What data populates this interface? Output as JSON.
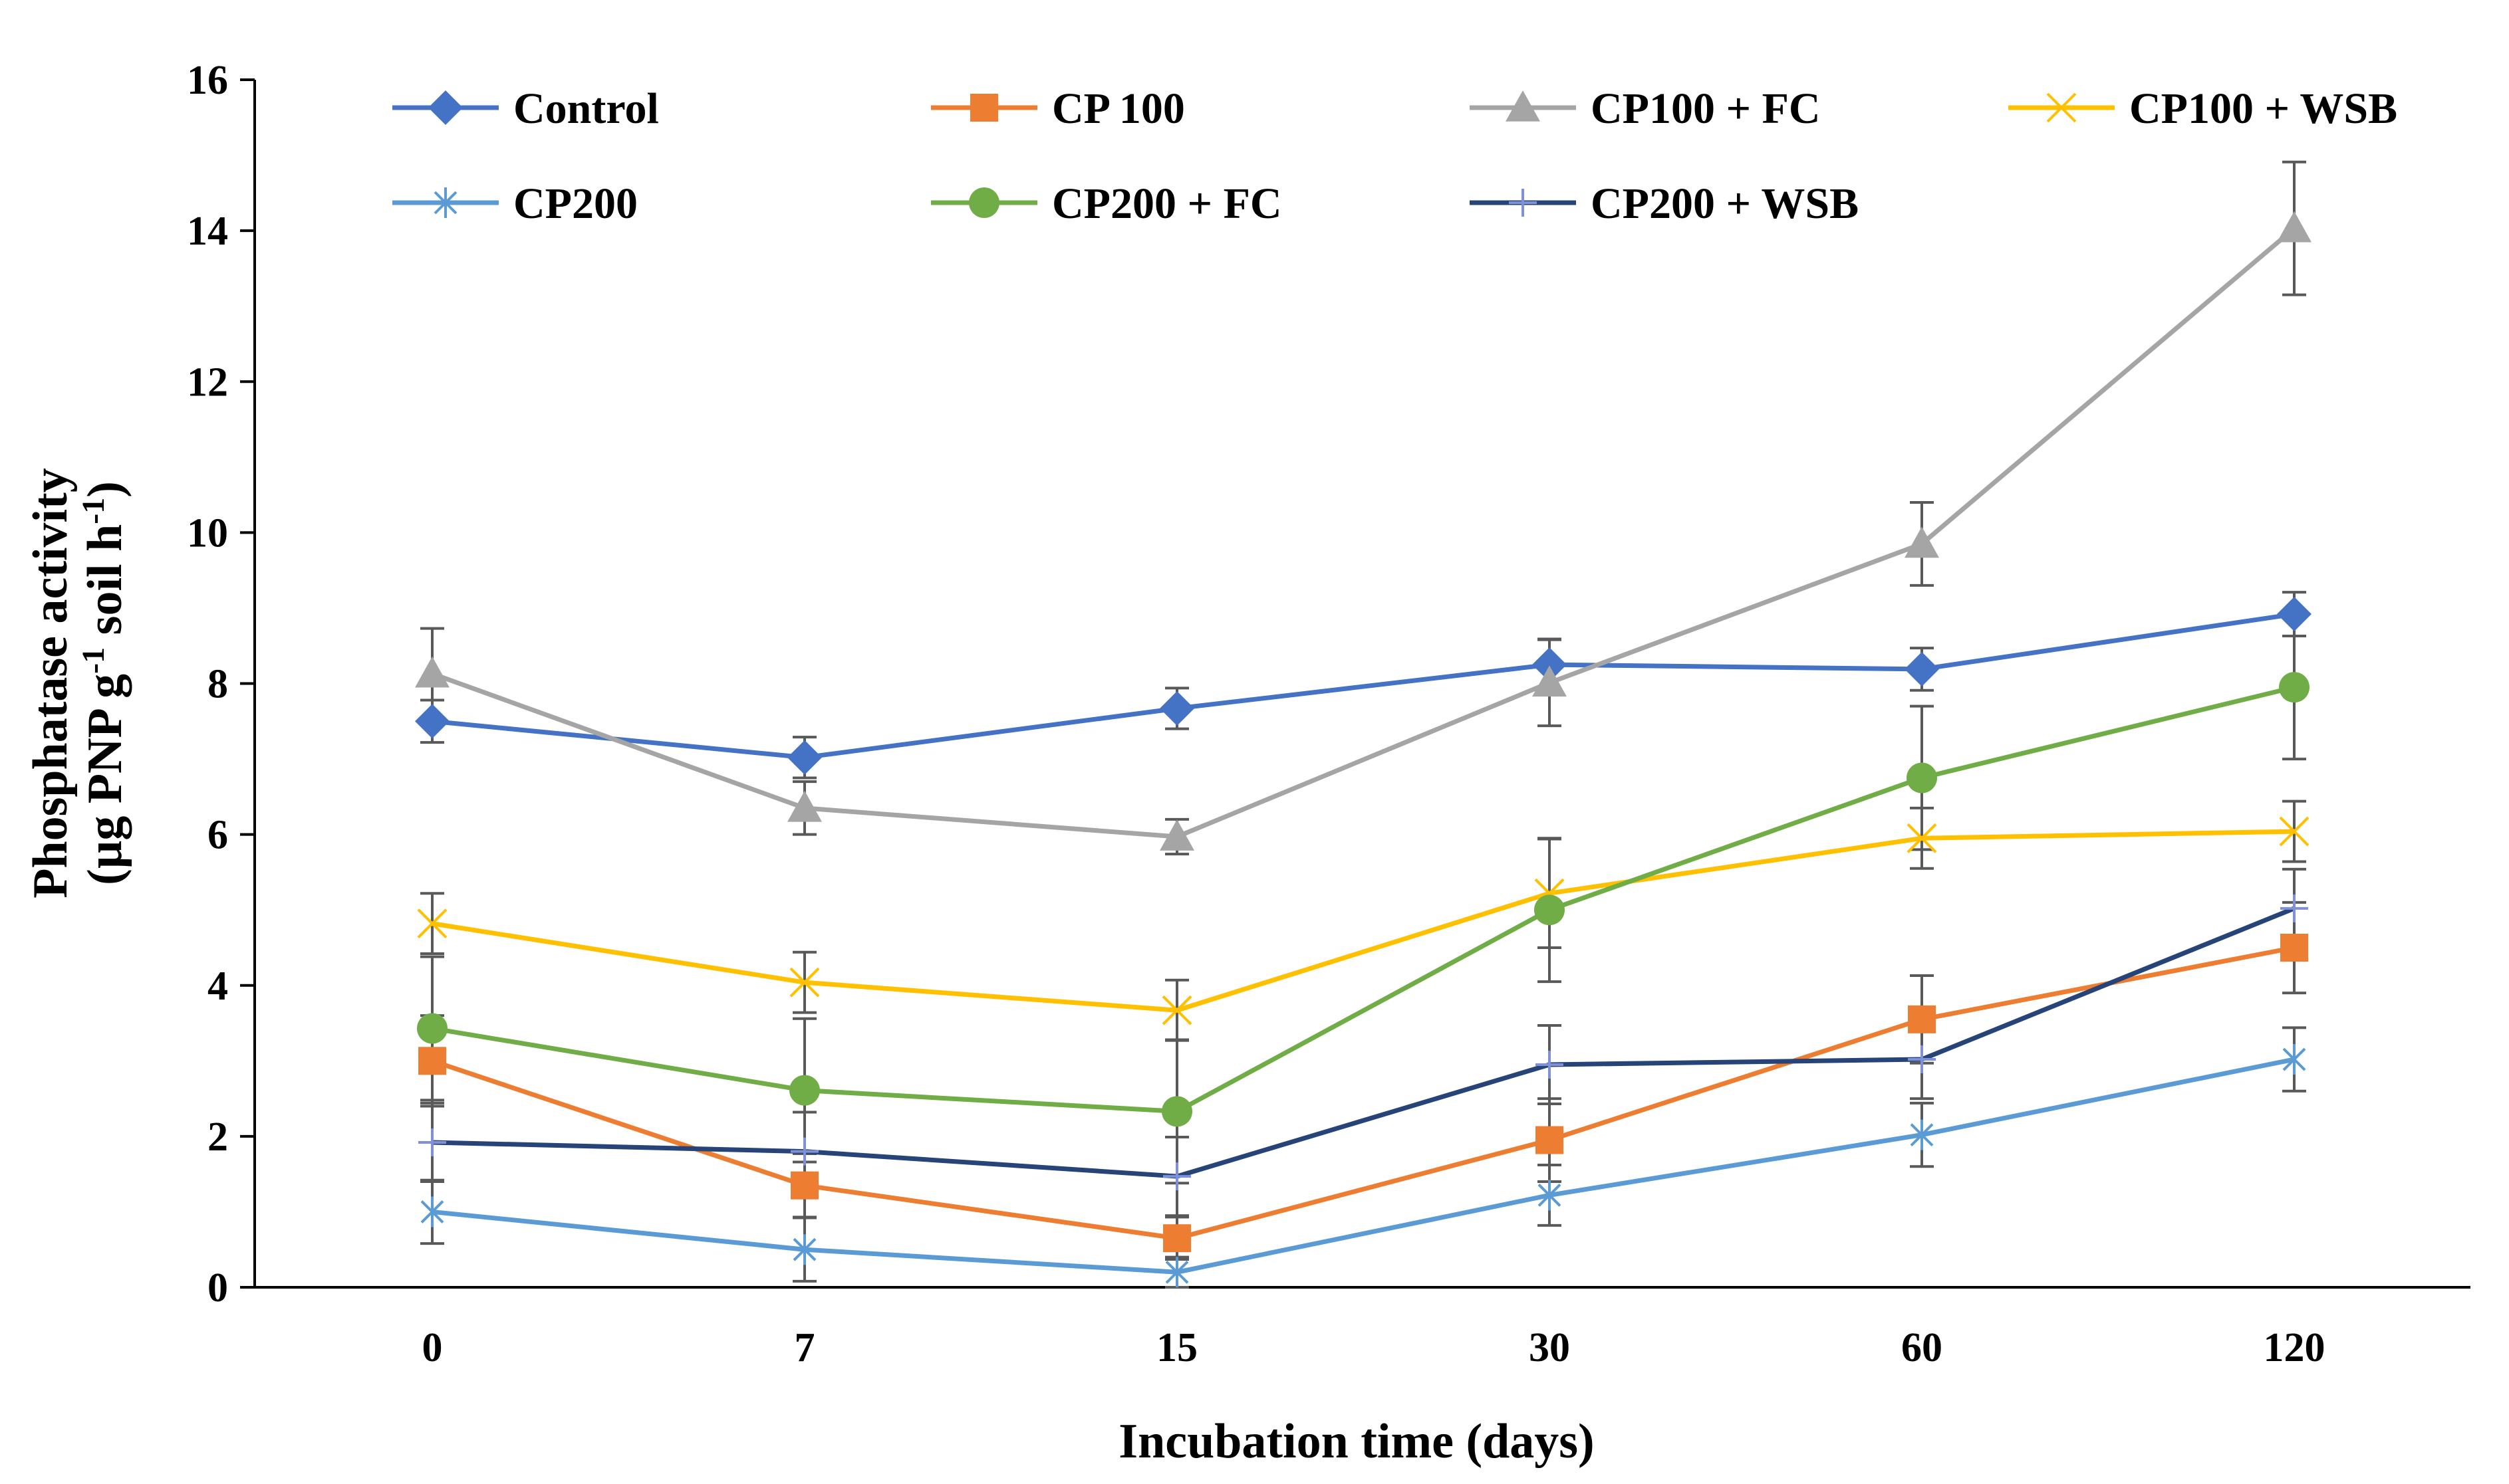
{
  "chart_data": {
    "type": "line",
    "title": "",
    "xlabel": "Incubation time (days)",
    "ylabel_line1": "Phosphatase activity",
    "ylabel_line2_parts": [
      "(µg PNP g",
      "-1",
      " soil h",
      "-1",
      ")"
    ],
    "categories": [
      "0",
      "7",
      "15",
      "30",
      "60",
      "120"
    ],
    "ylim": [
      0,
      16
    ],
    "yticks": [
      0,
      2,
      4,
      6,
      8,
      10,
      12,
      14,
      16
    ],
    "ytick_labels": [
      "0",
      "2",
      "4",
      "6",
      "8",
      "10",
      "12",
      "14",
      "16"
    ],
    "grid": false,
    "legend_position": "top",
    "series": [
      {
        "name": "Control",
        "color": "#4472C4",
        "marker": "diamond",
        "values": [
          7.5,
          7.02,
          7.67,
          8.25,
          8.19,
          8.92
        ],
        "errors": [
          0.28,
          0.27,
          0.27,
          0.34,
          0.28,
          0.29
        ]
      },
      {
        "name": "CP 100",
        "color": "#ED7D31",
        "marker": "square",
        "values": [
          3.0,
          1.35,
          0.65,
          1.95,
          3.55,
          4.5
        ],
        "errors": [
          0.6,
          0.42,
          0.28,
          0.55,
          0.58,
          0.6
        ]
      },
      {
        "name": "CP100 + FC",
        "color": "#A5A5A5",
        "marker": "triangle",
        "values": [
          8.13,
          6.35,
          5.97,
          8.01,
          9.85,
          14.03
        ],
        "errors": [
          0.6,
          0.35,
          0.23,
          0.57,
          0.55,
          0.88
        ]
      },
      {
        "name": "CP100 + WSB",
        "color": "#FFC000",
        "marker": "x",
        "values": [
          4.82,
          4.04,
          3.67,
          5.22,
          5.95,
          6.04
        ],
        "errors": [
          0.4,
          0.4,
          0.4,
          0.72,
          0.4,
          0.4
        ]
      },
      {
        "name": "CP200",
        "color": "#5B9BD5",
        "marker": "asterisk",
        "values": [
          1.0,
          0.5,
          0.2,
          1.22,
          2.02,
          3.02
        ],
        "errors": [
          0.42,
          0.42,
          0.2,
          0.4,
          0.42,
          0.42
        ]
      },
      {
        "name": "CP200 + FC",
        "color": "#70AD47",
        "marker": "circle",
        "values": [
          3.43,
          2.61,
          2.33,
          5.0,
          6.75,
          7.95
        ],
        "errors": [
          0.95,
          0.95,
          0.95,
          0.95,
          0.95,
          0.95
        ]
      },
      {
        "name": "CP200 + WSB",
        "color": "#264478",
        "marker": "plus",
        "values": [
          1.92,
          1.8,
          1.47,
          2.95,
          3.02,
          5.02
        ],
        "errors": [
          0.52,
          0.52,
          0.52,
          0.52,
          0.52,
          0.52
        ]
      }
    ]
  }
}
